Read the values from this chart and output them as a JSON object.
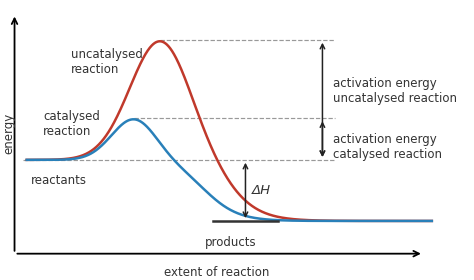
{
  "background_color": "#ffffff",
  "xlabel": "extent of reaction",
  "ylabel": "energy",
  "uncatalysed_color": "#c0392b",
  "catalysed_color": "#2980b9",
  "reactant_level": 0.38,
  "product_level": 0.1,
  "uncatalysed_peak": 0.93,
  "catalysed_peak": 0.57,
  "annotation_color": "#333333",
  "dashed_color": "#999999",
  "label_uncatalysed": "uncatalysed\nreaction",
  "label_catalysed": "catalysed\nreaction",
  "label_reactants": "reactants",
  "label_products": "products",
  "label_act_uncat": "activation energy\nuncatalysed reaction",
  "label_act_cat": "activation energy\ncatalysed reaction",
  "label_dH": "ΔH",
  "fontsize": 8.5,
  "arrow_color": "#222222"
}
